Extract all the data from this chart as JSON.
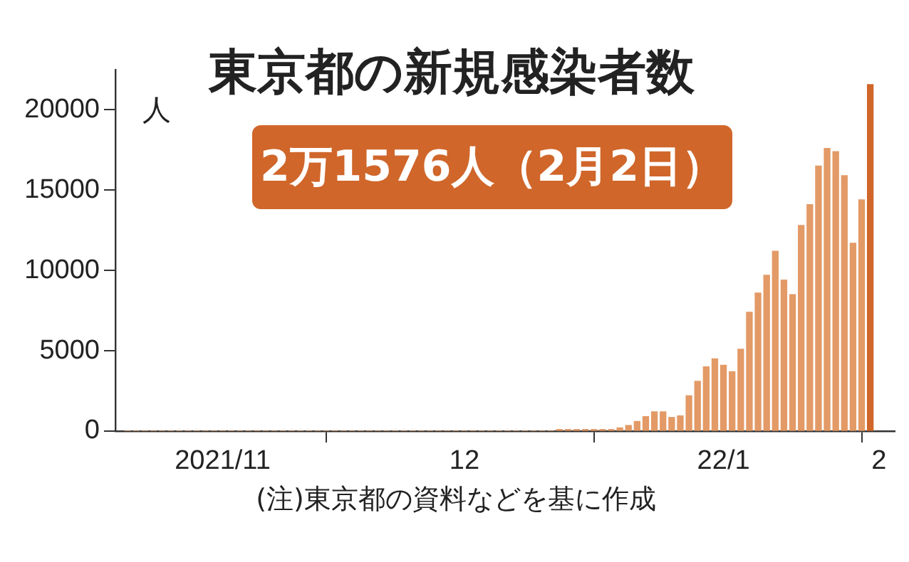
{
  "chart_data": {
    "type": "bar",
    "title": "東京都の新規感染者数",
    "ylabel": "人",
    "annotations": [
      "2万1576人（2月2日）",
      "(注)東京都の資料などを基に作成"
    ],
    "x": [
      "2021-11-08",
      "2021-11-09",
      "2021-11-10",
      "2021-11-11",
      "2021-11-12",
      "2021-11-13",
      "2021-11-14",
      "2021-11-15",
      "2021-11-16",
      "2021-11-17",
      "2021-11-18",
      "2021-11-19",
      "2021-11-20",
      "2021-11-21",
      "2021-11-22",
      "2021-11-23",
      "2021-11-24",
      "2021-11-25",
      "2021-11-26",
      "2021-11-27",
      "2021-11-28",
      "2021-11-29",
      "2021-11-30",
      "2021-12-01",
      "2021-12-02",
      "2021-12-03",
      "2021-12-04",
      "2021-12-05",
      "2021-12-06",
      "2021-12-07",
      "2021-12-08",
      "2021-12-09",
      "2021-12-10",
      "2021-12-11",
      "2021-12-12",
      "2021-12-13",
      "2021-12-14",
      "2021-12-15",
      "2021-12-16",
      "2021-12-17",
      "2021-12-18",
      "2021-12-19",
      "2021-12-20",
      "2021-12-21",
      "2021-12-22",
      "2021-12-23",
      "2021-12-24",
      "2021-12-25",
      "2021-12-26",
      "2021-12-27",
      "2021-12-28",
      "2021-12-29",
      "2021-12-30",
      "2021-12-31",
      "2022-01-01",
      "2022-01-02",
      "2022-01-03",
      "2022-01-04",
      "2022-01-05",
      "2022-01-06",
      "2022-01-07",
      "2022-01-08",
      "2022-01-09",
      "2022-01-10",
      "2022-01-11",
      "2022-01-12",
      "2022-01-13",
      "2022-01-14",
      "2022-01-15",
      "2022-01-16",
      "2022-01-17",
      "2022-01-18",
      "2022-01-19",
      "2022-01-20",
      "2022-01-21",
      "2022-01-22",
      "2022-01-23",
      "2022-01-24",
      "2022-01-25",
      "2022-01-26",
      "2022-01-27",
      "2022-01-28",
      "2022-01-29",
      "2022-01-30",
      "2022-01-31",
      "2022-02-01",
      "2022-02-02"
    ],
    "values": [
      0,
      0,
      0,
      0,
      0,
      0,
      0,
      0,
      0,
      0,
      0,
      0,
      0,
      0,
      0,
      0,
      0,
      0,
      0,
      0,
      0,
      0,
      0,
      0,
      0,
      0,
      0,
      0,
      0,
      0,
      0,
      0,
      0,
      0,
      0,
      0,
      0,
      0,
      0,
      0,
      0,
      0,
      0,
      0,
      0,
      0,
      0,
      0,
      0,
      0,
      100,
      100,
      100,
      100,
      100,
      100,
      100,
      200,
      350,
      600,
      900,
      1200,
      1200,
      850,
      950,
      2200,
      3100,
      4000,
      4500,
      4100,
      3700,
      5100,
      7400,
      8600,
      9700,
      11200,
      9400,
      8500,
      12800,
      14100,
      16500,
      17600,
      17400,
      15900,
      11700,
      14400,
      21576
    ],
    "colors": [
      "#e39a66",
      "#e39a66",
      "#e39a66",
      "#e39a66",
      "#e39a66",
      "#e39a66",
      "#e39a66",
      "#e39a66",
      "#e39a66",
      "#e39a66",
      "#e39a66",
      "#e39a66",
      "#e39a66",
      "#e39a66",
      "#e39a66",
      "#e39a66",
      "#e39a66",
      "#e39a66",
      "#e39a66",
      "#e39a66",
      "#e39a66",
      "#e39a66",
      "#e39a66",
      "#e39a66",
      "#e39a66",
      "#e39a66",
      "#e39a66",
      "#e39a66",
      "#e39a66",
      "#e39a66",
      "#e39a66",
      "#e39a66",
      "#e39a66",
      "#e39a66",
      "#e39a66",
      "#e39a66",
      "#e39a66",
      "#e39a66",
      "#e39a66",
      "#e39a66",
      "#e39a66",
      "#e39a66",
      "#e39a66",
      "#e39a66",
      "#e39a66",
      "#e39a66",
      "#e39a66",
      "#e39a66",
      "#e39a66",
      "#e39a66",
      "#e39a66",
      "#e39a66",
      "#e39a66",
      "#e39a66",
      "#e39a66",
      "#e39a66",
      "#e39a66",
      "#e39a66",
      "#e39a66",
      "#e39a66",
      "#e39a66",
      "#e39a66",
      "#e39a66",
      "#e39a66",
      "#e39a66",
      "#e39a66",
      "#e39a66",
      "#e39a66",
      "#e39a66",
      "#e39a66",
      "#e39a66",
      "#e39a66",
      "#e39a66",
      "#e39a66",
      "#e39a66",
      "#e39a66",
      "#e39a66",
      "#e39a66",
      "#e39a66",
      "#e39a66",
      "#e39a66",
      "#e39a66",
      "#e39a66",
      "#e39a66",
      "#e39a66",
      "#e39a66",
      "#d0662a"
    ],
    "xlim": [
      "2021-11-06T14:00",
      "2022-02-04T20:00"
    ],
    "xticks": [
      {
        "value": "2021-11-19",
        "label": "2021/11"
      },
      {
        "value": "2021-12-01",
        "label": null
      },
      {
        "value": "2021-12-17",
        "label": "12"
      },
      {
        "value": "2022-01-01",
        "label": null
      },
      {
        "value": "2022-01-16",
        "label": "22/1"
      },
      {
        "value": "2022-02-01",
        "label": null
      },
      {
        "value": "2022-02-03",
        "label": "2"
      }
    ],
    "ylim": [
      0,
      22500
    ],
    "yticks": [
      0,
      5000,
      10000,
      15000,
      20000
    ],
    "grid": false,
    "legend": false
  }
}
